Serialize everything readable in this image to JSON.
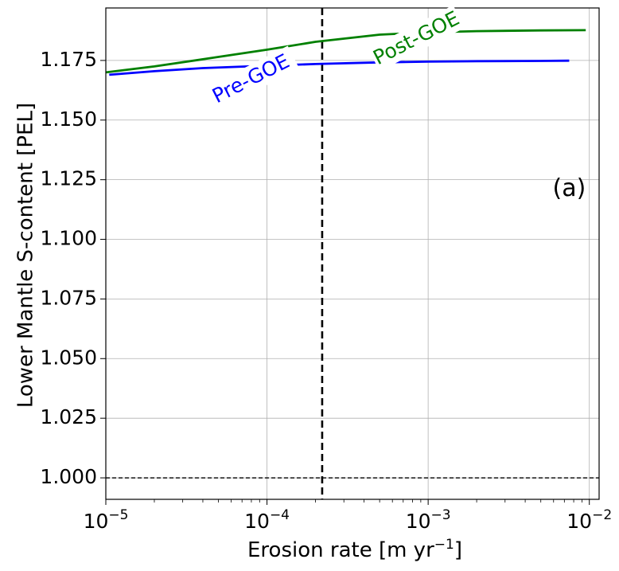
{
  "chart_data": {
    "type": "line",
    "title": "",
    "xlabel": {
      "text": "Erosion rate [m yr",
      "sup": "−1",
      "close": "]"
    },
    "ylabel": "Lower Mantle S-content [PEL]",
    "xscale": "log",
    "xlim": [
      1e-05,
      0.0115
    ],
    "ylim": [
      0.991,
      1.197
    ],
    "grid": true,
    "x_ticks": [
      {
        "value": 1e-05,
        "base": "10",
        "exp": "−5"
      },
      {
        "value": 0.0001,
        "base": "10",
        "exp": "−4"
      },
      {
        "value": 0.001,
        "base": "10",
        "exp": "−3"
      },
      {
        "value": 0.01,
        "base": "10",
        "exp": "−2"
      }
    ],
    "y_ticks": [
      "1.000",
      "1.025",
      "1.050",
      "1.075",
      "1.100",
      "1.125",
      "1.150",
      "1.175"
    ],
    "series": [
      {
        "name": "Pre-GOE",
        "color": "#0000ff",
        "label_at": {
          "x": 8e-05,
          "y": 1.167
        },
        "x": [
          1.05e-05,
          2e-05,
          4e-05,
          0.0001,
          0.0002,
          0.0005,
          0.001,
          0.002,
          0.005,
          0.0075
        ],
        "y": [
          1.169,
          1.1705,
          1.1718,
          1.1728,
          1.1735,
          1.1742,
          1.1745,
          1.1747,
          1.1748,
          1.1749
        ]
      },
      {
        "name": "Post-GOE",
        "color": "#008000",
        "label_at": {
          "x": 0.00085,
          "y": 1.184
        },
        "x": [
          1e-05,
          2e-05,
          4e-05,
          0.0001,
          0.0002,
          0.0005,
          0.001,
          0.002,
          0.005,
          0.0095
        ],
        "y": [
          1.17,
          1.1725,
          1.1755,
          1.1795,
          1.1828,
          1.1858,
          1.1868,
          1.1873,
          1.1876,
          1.1877
        ]
      }
    ],
    "vlines": [
      {
        "x": 0.00022,
        "style": "dashed",
        "color": "#000000"
      }
    ],
    "hlines": [
      {
        "y": 1.0,
        "style": "dashed",
        "color": "#000000"
      }
    ],
    "annotations": [
      {
        "text": "(a)",
        "x": 0.0075,
        "y": 1.121
      }
    ]
  }
}
